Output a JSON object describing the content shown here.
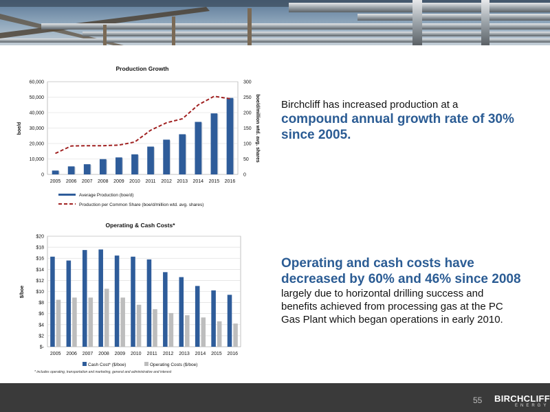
{
  "page": {
    "number": "55",
    "logo_main": "BIRCHCLIFF",
    "logo_sub": "ENERGY"
  },
  "text1": {
    "intro": "Birchcliff has increased production at a",
    "highlight": "compound annual growth rate of 30% since 2005."
  },
  "text2": {
    "highlight": "Operating and cash costs have decreased by 60% and 46% since 2008",
    "rest": " largely due to horizontal drilling success and benefits achieved from processing gas at the PC Gas Plant which began operations in early 2010."
  },
  "footnote": "* includes operating, transportation and marketing, general and administrative and interest",
  "chart_data": [
    {
      "type": "bar+line",
      "title": "Production Growth",
      "categories": [
        "2005",
        "2006",
        "2007",
        "2008",
        "2009",
        "2010",
        "2011",
        "2012",
        "2013",
        "2014",
        "2015",
        "2016"
      ],
      "ylabel": "boe/d",
      "y2label": "boe/d/million wtd. avg. shares",
      "ylim": [
        0,
        60000
      ],
      "y2lim": [
        0,
        300
      ],
      "yticks": [
        "0",
        "10,000",
        "20,000",
        "30,000",
        "40,000",
        "50,000",
        "60,000"
      ],
      "y2ticks": [
        "0",
        "50",
        "100",
        "150",
        "200",
        "250",
        "300"
      ],
      "legend_position": "bottom",
      "series": [
        {
          "name": "Average Production (boe/d)",
          "type": "bar",
          "color": "#2e5c9a",
          "values": [
            2500,
            5200,
            6600,
            9900,
            11000,
            13000,
            18000,
            22500,
            26000,
            34000,
            39500,
            49500
          ]
        },
        {
          "name": "Production per Common Share (boe/d/million wtd. avg. shares)",
          "type": "line",
          "color": "#a02020",
          "axis": "right",
          "values": [
            68,
            92,
            93,
            93,
            95,
            105,
            143,
            167,
            180,
            225,
            253,
            245
          ]
        }
      ]
    },
    {
      "type": "bar",
      "title": "Operating & Cash Costs*",
      "categories": [
        "2005",
        "2006",
        "2007",
        "2008",
        "2009",
        "2010",
        "2011",
        "2012",
        "2013",
        "2014",
        "2015",
        "2016"
      ],
      "ylabel": "$/boe",
      "ylim": [
        0,
        20
      ],
      "yticks": [
        "$-",
        "$2",
        "$4",
        "$6",
        "$8",
        "$10",
        "$12",
        "$14",
        "$16",
        "$18",
        "$20"
      ],
      "legend_position": "bottom",
      "series": [
        {
          "name": "Cash Cost* ($/boe)",
          "color": "#2e5c9a",
          "values": [
            16.3,
            15.6,
            17.5,
            17.6,
            16.5,
            16.3,
            15.8,
            13.5,
            12.6,
            11.0,
            10.2,
            9.4
          ]
        },
        {
          "name": "Operating Costs ($/boe)",
          "color": "#bdbdbd",
          "values": [
            8.5,
            8.9,
            8.9,
            10.5,
            8.9,
            7.6,
            6.8,
            6.1,
            5.7,
            5.3,
            4.6,
            4.2
          ]
        }
      ]
    }
  ]
}
